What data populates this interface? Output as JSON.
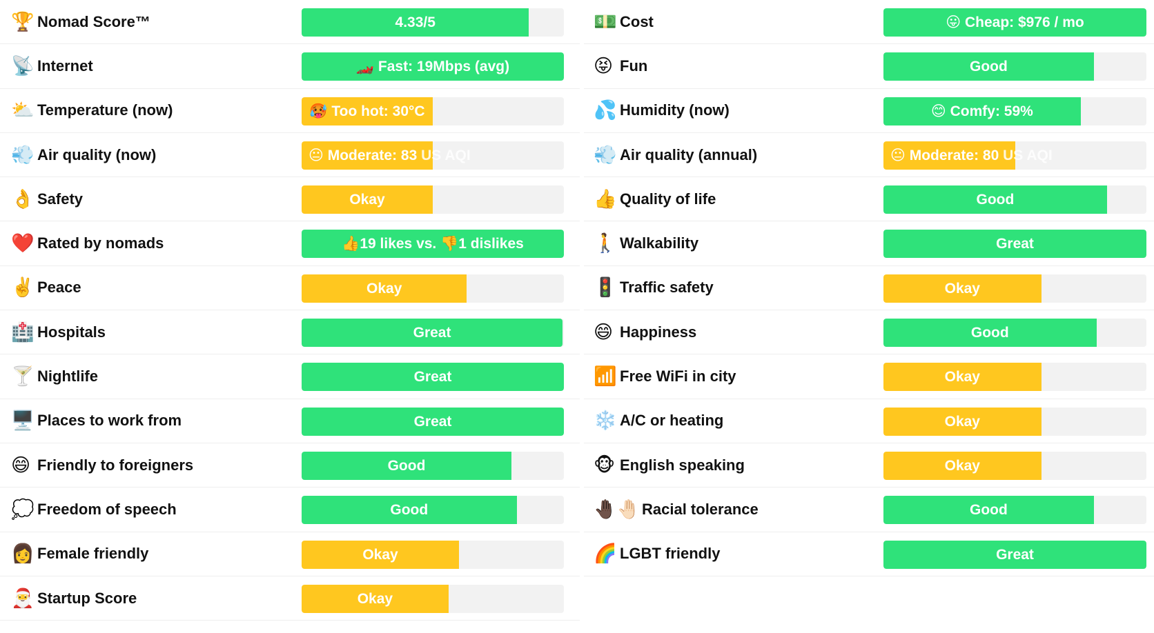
{
  "colors": {
    "good": "#2fe27a",
    "okay": "#ffc71f",
    "track": "#f2f2f2"
  },
  "left": [
    {
      "icon": "trophy-icon",
      "emoji": "🏆",
      "label": "Nomad Score™",
      "text": "4.33/5",
      "rating": "green",
      "level": 0.867
    },
    {
      "icon": "satellite-icon",
      "emoji": "📡",
      "label": "Internet",
      "text": "🏎️ Fast: 19Mbps (avg)",
      "rating": "green",
      "level": 1.0
    },
    {
      "icon": "sun-behind-cloud-icon",
      "emoji": "⛅",
      "label": "Temperature (now)",
      "text": "🥵 Too hot: 30°C",
      "rating": "yellow",
      "level": 0.5
    },
    {
      "icon": "wind-face-icon",
      "emoji": "💨",
      "label": "Air quality (now)",
      "text": "😐 Moderate: 83",
      "suffix": "US AQI",
      "rating": "yellow",
      "level": 0.5
    },
    {
      "icon": "ok-hand-icon",
      "emoji": "👌",
      "label": "Safety",
      "text": "Okay",
      "rating": "yellow",
      "level": 0.5
    },
    {
      "icon": "red-heart-icon",
      "emoji": "❤️",
      "label": "Rated by nomads",
      "text": "👍19 likes vs. 👎1 dislikes",
      "rating": "green",
      "level": 1.0
    },
    {
      "icon": "victory-hand-icon",
      "emoji": "✌️",
      "label": "Peace",
      "text": "Okay",
      "rating": "yellow",
      "level": 0.63
    },
    {
      "icon": "hospital-icon",
      "emoji": "🏥",
      "label": "Hospitals",
      "text": "Great",
      "rating": "green",
      "level": 0.995
    },
    {
      "icon": "cocktail-icon",
      "emoji": "🍸",
      "label": "Nightlife",
      "text": "Great",
      "rating": "green",
      "level": 1.0
    },
    {
      "icon": "desktop-computer-icon",
      "emoji": "🖥️",
      "label": "Places to work from",
      "text": "Great",
      "rating": "green",
      "level": 1.0
    },
    {
      "icon": "grinning-face-icon",
      "emoji": "😄",
      "label": "Friendly to foreigners",
      "text": "Good",
      "rating": "green",
      "level": 0.8
    },
    {
      "icon": "speech-balloon-icon",
      "emoji": "💭",
      "label": "Freedom of speech",
      "text": "Good",
      "rating": "green",
      "level": 0.82
    },
    {
      "icon": "woman-icon",
      "emoji": "👩",
      "label": "Female friendly",
      "text": "Okay",
      "rating": "yellow",
      "level": 0.6
    },
    {
      "icon": "santa-icon",
      "emoji": "🎅",
      "label": "Startup Score",
      "text": "Okay",
      "rating": "yellow",
      "level": 0.56
    }
  ],
  "right": [
    {
      "icon": "dollar-banknote-icon",
      "emoji": "💵",
      "label": "Cost",
      "text": "😛 Cheap: $976 / mo",
      "rating": "green",
      "level": 1.0
    },
    {
      "icon": "tongue-face-icon",
      "emoji": "😝",
      "label": "Fun",
      "text": "Good",
      "rating": "green",
      "level": 0.8
    },
    {
      "icon": "sweat-droplets-icon",
      "emoji": "💦",
      "label": "Humidity (now)",
      "text": "😊 Comfy: 59%",
      "rating": "green",
      "level": 0.75
    },
    {
      "icon": "wind-face-icon",
      "emoji": "💨",
      "label": "Air quality (annual)",
      "text": "😐 Moderate: 80",
      "suffix": "US AQI",
      "rating": "yellow",
      "level": 0.5
    },
    {
      "icon": "thumbs-up-icon",
      "emoji": "👍",
      "label": "Quality of life",
      "text": "Good",
      "rating": "green",
      "level": 0.85
    },
    {
      "icon": "person-walking-icon",
      "emoji": "🚶",
      "label": "Walkability",
      "text": "Great",
      "rating": "green",
      "level": 1.0
    },
    {
      "icon": "traffic-light-icon",
      "emoji": "🚦",
      "label": "Traffic safety",
      "text": "Okay",
      "rating": "yellow",
      "level": 0.6
    },
    {
      "icon": "smiling-face-icon",
      "emoji": "😄",
      "label": "Happiness",
      "text": "Good",
      "rating": "green",
      "level": 0.81
    },
    {
      "icon": "signal-bars-icon",
      "emoji": "📶",
      "label": "Free WiFi in city",
      "text": "Okay",
      "rating": "yellow",
      "level": 0.6
    },
    {
      "icon": "snowflake-icon",
      "emoji": "❄️",
      "label": "A/C or heating",
      "text": "Okay",
      "rating": "yellow",
      "level": 0.6
    },
    {
      "icon": "monkey-face-icon",
      "emoji": "🐵",
      "label": "English speaking",
      "text": "Okay",
      "rating": "yellow",
      "level": 0.6
    },
    {
      "icon": "raised-hands-icon",
      "emoji": "🤚🏿🤚🏻",
      "label": "Racial tolerance",
      "text": "Good",
      "rating": "green",
      "level": 0.8,
      "indent": true
    },
    {
      "icon": "rainbow-icon",
      "emoji": "🌈",
      "label": "LGBT friendly",
      "text": "Great",
      "rating": "green",
      "level": 1.0
    }
  ]
}
